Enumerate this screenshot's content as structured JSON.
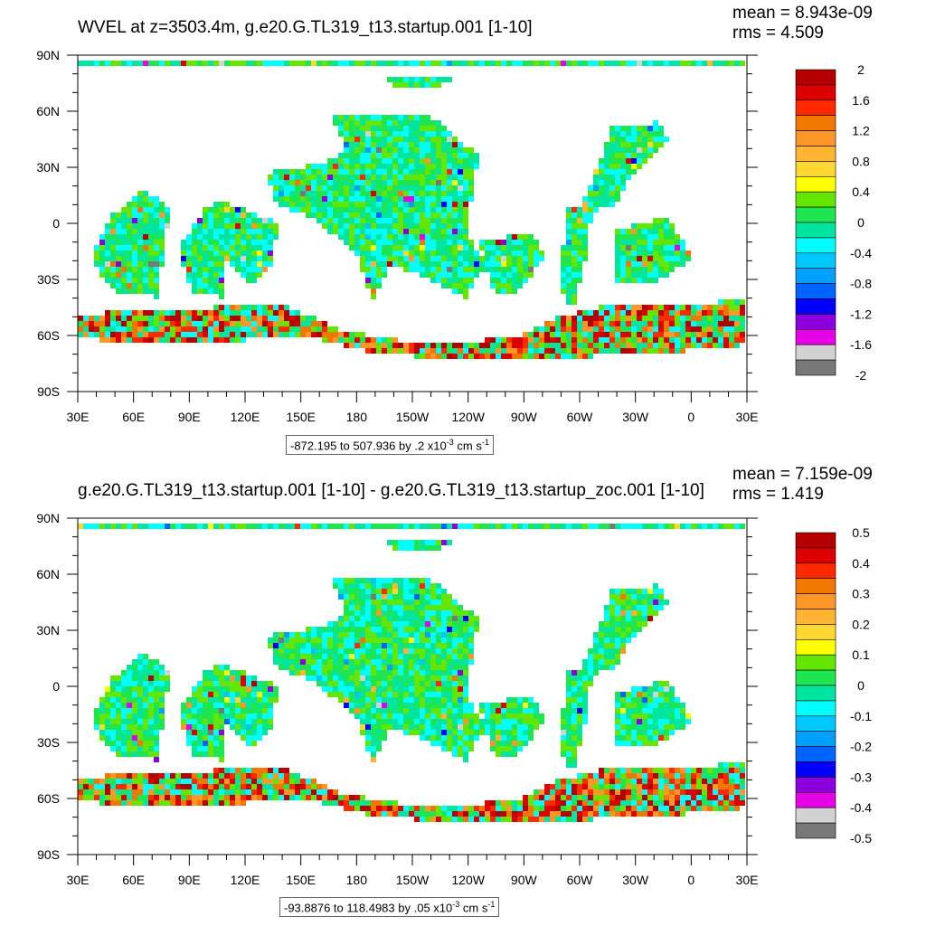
{
  "colors": [
    "#b40000",
    "#dc0000",
    "#ff2a00",
    "#f07800",
    "#ff9628",
    "#ffb432",
    "#ffd732",
    "#ffff00",
    "#64e600",
    "#1ee650",
    "#00e6a0",
    "#00ffff",
    "#00c8ff",
    "#00a0ff",
    "#0064ff",
    "#0000ff",
    "#8c00dc",
    "#e600e6",
    "#d2d2d2",
    "#787878"
  ],
  "lon_ticks": [
    "30E",
    "60E",
    "90E",
    "120E",
    "150E",
    "180",
    "150W",
    "120W",
    "90W",
    "60W",
    "30W",
    "0",
    "30E"
  ],
  "lat_ticks": [
    "90N",
    "60N",
    "30N",
    "0",
    "30S",
    "60S",
    "90S"
  ],
  "panels": [
    {
      "title": "WVEL at z=3503.4m, g.e20.G.TL319_t13.startup.001 [1-10]",
      "mean": "mean = 8.943e-09",
      "rms": "rms = 4.509",
      "range_prefix": "-872.195 to 507.936 by .2 x10",
      "range_exp": "-3",
      "range_unit": " cm s",
      "range_unit_exp": "-1",
      "colorbar_labels": [
        "2",
        "1.6",
        "1.2",
        "0.8",
        "0.4",
        "0",
        "-0.4",
        "-0.8",
        "-1.2",
        "-1.6",
        "-2"
      ]
    },
    {
      "title": "g.e20.G.TL319_t13.startup.001 [1-10] - g.e20.G.TL319_t13.startup_zoc.001 [1-10]",
      "mean": "mean = 7.159e-09",
      "rms": "rms = 1.419",
      "range_prefix": "-93.8876 to 118.4983 by .05 x10",
      "range_exp": "-3",
      "range_unit": " cm s",
      "range_unit_exp": "-1",
      "colorbar_labels": [
        "0.5",
        "0.4",
        "0.3",
        "0.2",
        "0.1",
        "0",
        "-0.1",
        "-0.2",
        "-0.3",
        "-0.4",
        "-0.5"
      ]
    }
  ]
}
